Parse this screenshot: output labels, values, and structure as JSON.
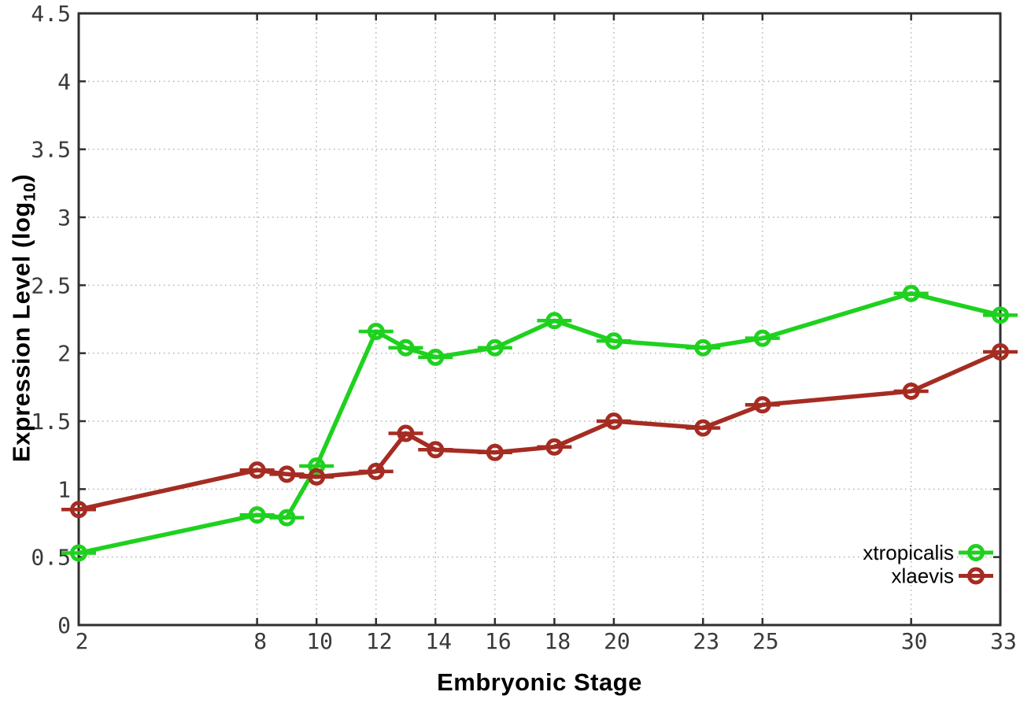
{
  "figure": {
    "x_title": "Embryonic Stage",
    "y_title_main": "Expression Level (log",
    "y_title_sub": "10",
    "y_title_close": ")"
  },
  "colors": {
    "background": "#ffffff",
    "axis": "#2f2f2f",
    "tick_label": "#3a3a3a",
    "grid": "#b3b3b3",
    "legend_text": "#000000",
    "xtropicalis": "#1fd11f",
    "xlaevis": "#a52c22"
  },
  "chart_data": {
    "type": "line",
    "title": "",
    "xlabel": "Embryonic Stage",
    "ylabel": "Expression Level (log10)",
    "xlim": [
      2,
      33
    ],
    "ylim": [
      0,
      4.5
    ],
    "grid": true,
    "grid_style": "dotted",
    "legend_position": "bottom-right-inside",
    "marker": "open-circle-with-error-cap",
    "x": [
      2,
      8,
      9,
      10,
      12,
      13,
      14,
      16,
      18,
      20,
      23,
      25,
      30,
      33
    ],
    "x_ticks": [
      2,
      8,
      10,
      12,
      14,
      16,
      18,
      20,
      23,
      25,
      30,
      33
    ],
    "x_tick_labels": [
      "2",
      "8",
      "10",
      "12",
      "14",
      "16",
      "18",
      "20",
      "23",
      "25",
      "30",
      "33"
    ],
    "y_ticks": [
      0,
      0.5,
      1,
      1.5,
      2,
      2.5,
      3,
      3.5,
      4,
      4.5
    ],
    "y_tick_labels": [
      "0",
      "0.5",
      "1",
      "1.5",
      "2",
      "2.5",
      "3",
      "3.5",
      "4",
      "4.5"
    ],
    "series": [
      {
        "name": "xtropicalis",
        "color": "#1fd11f",
        "values": [
          0.53,
          0.81,
          0.79,
          1.17,
          2.16,
          2.04,
          1.97,
          2.04,
          2.24,
          2.09,
          2.04,
          2.11,
          2.44,
          2.28
        ]
      },
      {
        "name": "xlaevis",
        "color": "#a52c22",
        "values": [
          0.85,
          1.14,
          1.11,
          1.09,
          1.13,
          1.41,
          1.29,
          1.27,
          1.31,
          1.5,
          1.45,
          1.62,
          1.72,
          2.01
        ]
      }
    ]
  }
}
